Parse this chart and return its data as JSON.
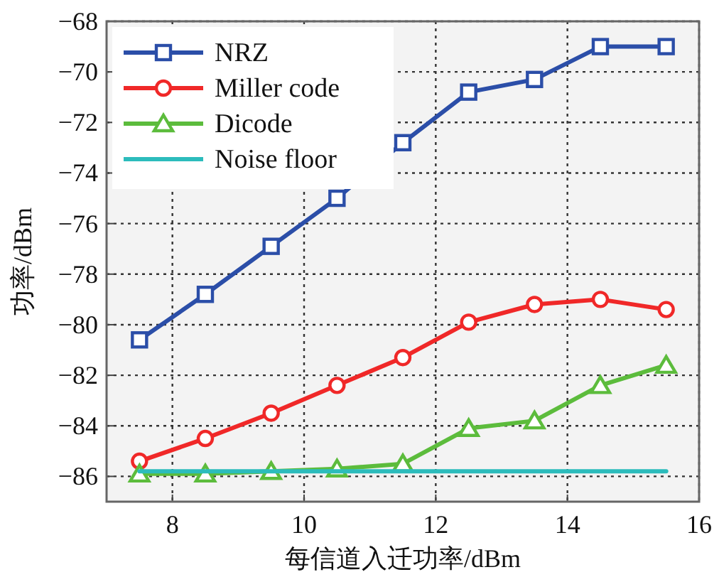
{
  "chart_data": {
    "type": "line",
    "xlabel": "每信道入迁功率/dBm",
    "ylabel": "功率/dBm",
    "x": [
      7.5,
      8.5,
      9.5,
      10.5,
      11.5,
      12.5,
      13.5,
      14.5,
      15.5
    ],
    "xlim": [
      7,
      16
    ],
    "xticks": [
      8,
      10,
      12,
      14,
      16
    ],
    "ylim": [
      -87,
      -68
    ],
    "yticks": [
      -68,
      -70,
      -72,
      -74,
      -76,
      -78,
      -80,
      -82,
      -84,
      -86
    ],
    "grid": true,
    "legend": "top left",
    "line_style": "solid",
    "series": [
      {
        "name": "NRZ",
        "color": "#2b4ea8",
        "marker": "square",
        "values": [
          -80.6,
          -78.8,
          -76.9,
          -75.0,
          -72.8,
          -70.8,
          -70.3,
          -69.0,
          -69.0
        ]
      },
      {
        "name": "Miller code",
        "color": "#f02828",
        "marker": "circle",
        "values": [
          -85.4,
          -84.5,
          -83.5,
          -82.4,
          -81.3,
          -79.9,
          -79.2,
          -79.0,
          -79.4
        ]
      },
      {
        "name": "Dicode",
        "color": "#5cbc3c",
        "marker": "triangle",
        "values": [
          -85.9,
          -85.9,
          -85.8,
          -85.7,
          -85.5,
          -84.1,
          -83.8,
          -82.4,
          -81.6
        ]
      },
      {
        "name": "Noise floor",
        "color": "#2cbcbc",
        "marker": "none",
        "x": [
          7.5,
          15.5
        ],
        "values": [
          -85.8,
          -85.8
        ]
      }
    ]
  }
}
